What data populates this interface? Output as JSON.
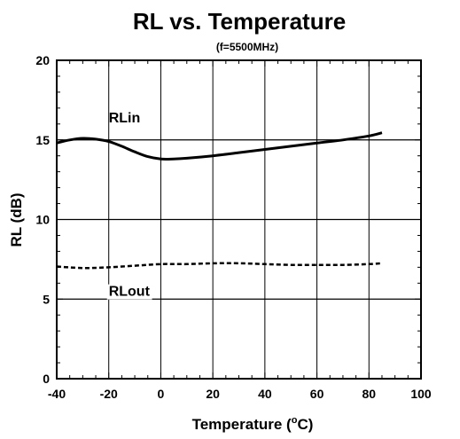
{
  "chart_data": {
    "type": "line",
    "title": "RL vs. Temperature",
    "subtitle": "(f=5500MHz)",
    "xlabel": "Temperature (°C)",
    "ylabel": "RL (dB)",
    "xlim": [
      -40,
      100
    ],
    "ylim": [
      0,
      20
    ],
    "x_ticks": [
      -40,
      -20,
      0,
      20,
      40,
      60,
      80,
      100
    ],
    "x_tick_labels": [
      "-40",
      "-20",
      "0",
      "20",
      "40",
      "60",
      "80",
      "100"
    ],
    "y_ticks": [
      0,
      5,
      10,
      15,
      20
    ],
    "y_tick_labels": [
      "0",
      "5",
      "10",
      "15",
      "20"
    ],
    "grid": true,
    "series": [
      {
        "name": "RLin",
        "style": "solid",
        "x": [
          -40,
          -35,
          -30,
          -25,
          -20,
          -15,
          -10,
          -5,
          0,
          5,
          10,
          20,
          30,
          40,
          50,
          60,
          70,
          80,
          85
        ],
        "y": [
          14.8,
          15.0,
          15.1,
          15.05,
          14.9,
          14.6,
          14.25,
          13.95,
          13.8,
          13.8,
          13.85,
          14.0,
          14.2,
          14.4,
          14.6,
          14.8,
          15.0,
          15.25,
          15.45
        ]
      },
      {
        "name": "RLout",
        "style": "dashed",
        "x": [
          -40,
          -30,
          -20,
          -10,
          0,
          10,
          20,
          30,
          40,
          50,
          60,
          70,
          80,
          85
        ],
        "y": [
          7.05,
          6.95,
          7.0,
          7.1,
          7.2,
          7.2,
          7.25,
          7.25,
          7.2,
          7.15,
          7.15,
          7.15,
          7.2,
          7.25
        ]
      }
    ]
  }
}
